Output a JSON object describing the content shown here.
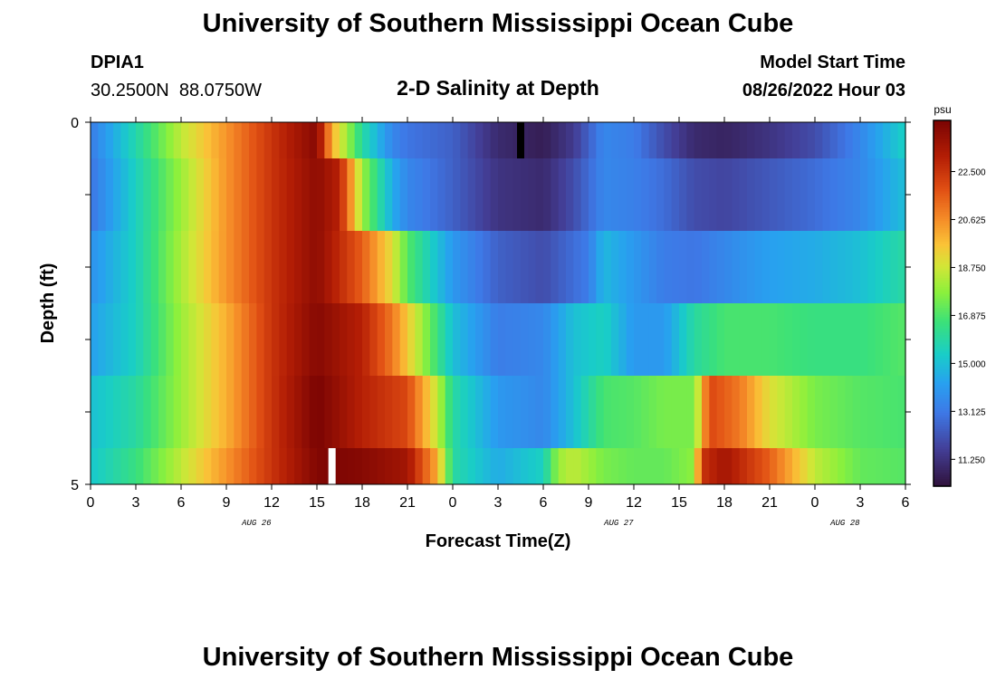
{
  "header": {
    "title": "University of Southern Mississippi Ocean Cube",
    "station_id": "DPIA1",
    "coordinates": "30.2500N  88.0750W",
    "plot_title": "2-D Salinity at Depth",
    "model_label": "Model Start Time",
    "model_time": "08/26/2022 Hour 03"
  },
  "footer": {
    "title": "University of Southern Mississippi Ocean Cube"
  },
  "chart_data": {
    "type": "heatmap",
    "title": "2-D Salinity at Depth",
    "xlabel": "Forecast Time(Z)",
    "ylabel": "Depth (ft)",
    "x_start_hour": 0,
    "x_end_hour": 54,
    "x_tick_labels": [
      "0",
      "3",
      "6",
      "9",
      "12",
      "15",
      "18",
      "21",
      "0",
      "3",
      "6",
      "9",
      "12",
      "15",
      "18",
      "21",
      "0",
      "3",
      "6"
    ],
    "date_labels": [
      {
        "label": "AUG 26",
        "hour": 11
      },
      {
        "label": "AUG 27",
        "hour": 35
      },
      {
        "label": "AUG 28",
        "hour": 50
      }
    ],
    "y_tick_labels": [
      "0",
      "5"
    ],
    "ylim": [
      0,
      5
    ],
    "depth_layers": [
      {
        "top": 0.0,
        "bottom": 0.5
      },
      {
        "top": 0.5,
        "bottom": 1.5
      },
      {
        "top": 1.5,
        "bottom": 2.5
      },
      {
        "top": 2.5,
        "bottom": 3.5
      },
      {
        "top": 3.5,
        "bottom": 4.5
      },
      {
        "top": 4.5,
        "bottom": 5.0
      }
    ],
    "colorbar": {
      "unit": "psu",
      "min": 10.2,
      "max": 24.5,
      "tick_labels": [
        "22.500",
        "20.625",
        "18.750",
        "16.875",
        "15.000",
        "13.125",
        "11.250"
      ],
      "tick_values": [
        22.5,
        20.625,
        18.75,
        16.875,
        15.0,
        13.125,
        11.25
      ]
    },
    "series": [
      {
        "hours": [
          0,
          3,
          6,
          9,
          12,
          15,
          16,
          18,
          20,
          21,
          24,
          27,
          30,
          32,
          34,
          36,
          38,
          40,
          42,
          45,
          48,
          51,
          54
        ],
        "values": [
          13.2,
          15.8,
          18.5,
          20.5,
          22.5,
          24.2,
          20.0,
          16.0,
          13.5,
          13.0,
          12.5,
          11.0,
          10.6,
          11.5,
          13.5,
          13.2,
          12.0,
          11.0,
          10.8,
          11.3,
          12.0,
          13.5,
          15.5
        ]
      },
      {
        "hours": [
          0,
          3,
          6,
          9,
          12,
          15,
          16.5,
          18,
          20,
          21,
          24,
          27,
          30,
          32,
          34,
          36,
          38,
          40,
          42,
          45,
          48,
          51,
          54
        ],
        "values": [
          13.0,
          15.5,
          18.0,
          20.5,
          22.5,
          24.0,
          23.0,
          18.0,
          14.5,
          13.5,
          12.5,
          11.3,
          11.0,
          12.0,
          13.5,
          13.3,
          12.8,
          12.0,
          11.8,
          12.3,
          12.8,
          13.5,
          15.0
        ]
      },
      {
        "hours": [
          0,
          3,
          6,
          9,
          12,
          15,
          18,
          20,
          21,
          24,
          27,
          30,
          33,
          34,
          36,
          38,
          40,
          42,
          45,
          48,
          51,
          54
        ],
        "values": [
          13.8,
          15.5,
          18.2,
          20.5,
          22.5,
          24.0,
          21.5,
          19.0,
          17.0,
          14.0,
          12.5,
          12.0,
          13.2,
          14.8,
          14.0,
          13.2,
          13.0,
          13.5,
          14.2,
          14.5,
          15.0,
          16.0
        ]
      },
      {
        "hours": [
          0,
          3,
          6,
          9,
          12,
          15,
          18,
          20,
          22,
          24,
          27,
          30,
          32,
          34,
          36,
          38,
          40,
          42,
          45,
          48,
          51,
          54
        ],
        "values": [
          14.2,
          15.5,
          18.0,
          20.0,
          22.5,
          24.2,
          23.0,
          21.0,
          18.0,
          15.0,
          13.2,
          13.5,
          15.0,
          15.5,
          14.0,
          14.0,
          16.0,
          16.8,
          16.8,
          16.5,
          16.5,
          17.0
        ]
      },
      {
        "hours": [
          0,
          3,
          6,
          9,
          12,
          15,
          18,
          21,
          23,
          24,
          27,
          30,
          32,
          34,
          36,
          38,
          40,
          41,
          43,
          45,
          48,
          51,
          54
        ],
        "values": [
          15.0,
          16.0,
          18.0,
          20.0,
          22.5,
          24.5,
          23.0,
          22.0,
          18.5,
          16.0,
          14.0,
          13.5,
          15.0,
          16.8,
          17.0,
          17.5,
          17.5,
          22.0,
          21.0,
          19.0,
          17.5,
          17.0,
          16.8
        ]
      },
      {
        "hours": [
          0,
          3,
          6,
          9,
          12,
          15,
          16,
          18,
          21,
          23,
          24,
          27,
          30,
          31,
          32,
          34,
          36,
          38,
          40,
          40.5,
          42,
          45,
          48,
          51,
          54
        ],
        "values": [
          15.2,
          16.5,
          18.5,
          20.5,
          22.5,
          24.3,
          24.4,
          24.2,
          23.5,
          20.0,
          16.0,
          14.5,
          15.5,
          18.0,
          18.5,
          17.5,
          17.2,
          17.2,
          17.8,
          22.5,
          23.5,
          21.5,
          18.5,
          17.2,
          17.0
        ]
      }
    ],
    "markers": [
      {
        "hour": 28.5,
        "layer": 0,
        "color": "#000000"
      },
      {
        "hour": 16.0,
        "layer": 5,
        "color": "#ffffff"
      }
    ]
  }
}
